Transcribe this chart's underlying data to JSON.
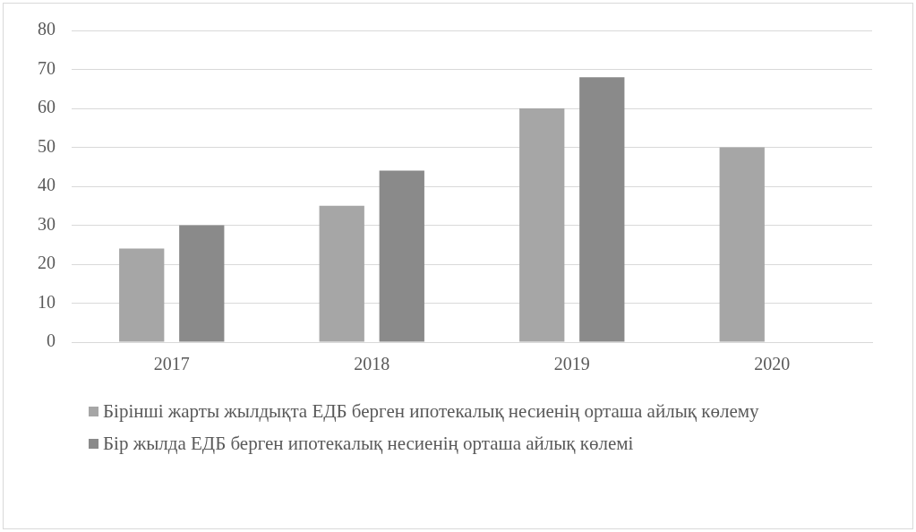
{
  "chart_data": {
    "type": "bar",
    "categories": [
      "2017",
      "2018",
      "2019",
      "2020"
    ],
    "series": [
      {
        "name": "Бірінші жарты жылдықта ЕДБ берген ипотекалық несиенің орташа айлық көлему",
        "color": "#a6a6a6",
        "values": [
          24,
          35,
          60,
          50
        ]
      },
      {
        "name": "Бір жылда ЕДБ берген ипотекалық несиенің орташа айлық көлемі",
        "color": "#8a8a8a",
        "values": [
          30,
          44,
          68,
          null
        ]
      }
    ],
    "ylim": [
      0,
      80
    ],
    "yticks": [
      0,
      10,
      20,
      30,
      40,
      50,
      60,
      70,
      80
    ],
    "grid": "y",
    "legend": "bottom"
  }
}
